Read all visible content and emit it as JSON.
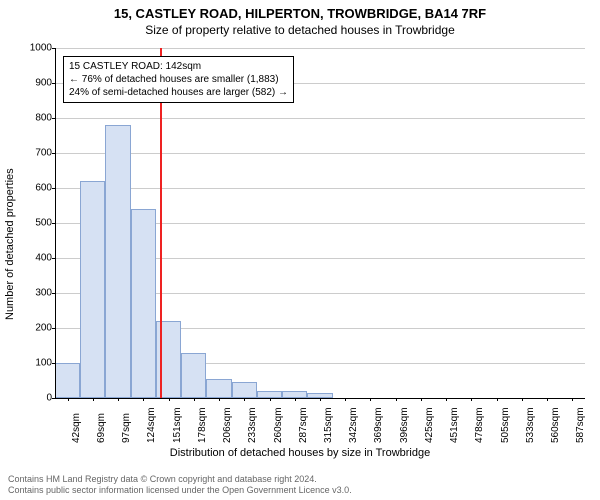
{
  "title_main": "15, CASTLEY ROAD, HILPERTON, TROWBRIDGE, BA14 7RF",
  "title_sub": "Size of property relative to detached houses in Trowbridge",
  "chart": {
    "type": "histogram",
    "ylim": [
      0,
      1000
    ],
    "ytick_step": 100,
    "ylabel": "Number of detached properties",
    "xlabel": "Distribution of detached houses by size in Trowbridge",
    "x_categories": [
      "42sqm",
      "69sqm",
      "97sqm",
      "124sqm",
      "151sqm",
      "178sqm",
      "206sqm",
      "233sqm",
      "260sqm",
      "287sqm",
      "315sqm",
      "342sqm",
      "369sqm",
      "396sqm",
      "425sqm",
      "451sqm",
      "478sqm",
      "505sqm",
      "533sqm",
      "560sqm",
      "587sqm"
    ],
    "values": [
      100,
      620,
      780,
      540,
      220,
      130,
      55,
      45,
      20,
      20,
      15,
      0,
      0,
      0,
      0,
      0,
      0,
      0,
      0,
      0,
      0
    ],
    "bar_fill": "#d6e1f3",
    "bar_border": "#8aa6d3",
    "ref_value_sqm": 142,
    "ref_color": "#ee2222",
    "grid_color": "#cccccc",
    "background_color": "#ffffff"
  },
  "annotation": {
    "line1": "15 CASTLEY ROAD: 142sqm",
    "line2": "← 76% of detached houses are smaller (1,883)",
    "line3": "24% of semi-detached houses are larger (582) →"
  },
  "attribution": {
    "line1": "Contains HM Land Registry data © Crown copyright and database right 2024.",
    "line2": "Contains public sector information licensed under the Open Government Licence v3.0."
  }
}
